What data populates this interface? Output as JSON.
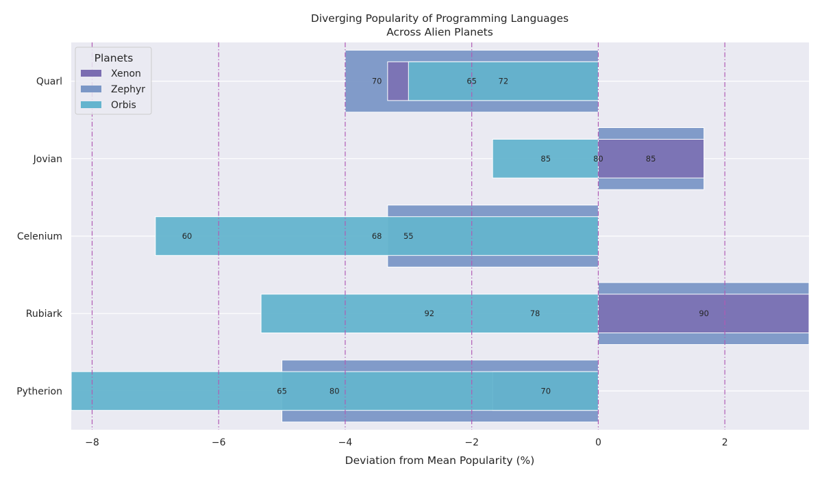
{
  "chart_data": {
    "type": "bar",
    "orientation": "horizontal",
    "title_lines": [
      "Diverging Popularity of Programming Languages",
      "Across Alien Planets"
    ],
    "xlabel": "Deviation from Mean Popularity (%)",
    "ylabel": "",
    "xlim": [
      -8.33,
      3.33
    ],
    "xticks": [
      -8,
      -6,
      -4,
      -2,
      0,
      2
    ],
    "xtick_labels": [
      "−8",
      "−6",
      "−4",
      "−2",
      "0",
      "2"
    ],
    "grid": true,
    "reference_lines": [
      -8,
      -6,
      -4,
      -2,
      0,
      2
    ],
    "reference_line_color": "#b05ab4",
    "categories": [
      "Quarl",
      "Jovian",
      "Celenium",
      "Rubiark",
      "Pytherion"
    ],
    "series": [
      {
        "name": "Xenon",
        "color": "#7b6db1",
        "deviations": [
          -3.33,
          1.67,
          0.0,
          6.67,
          -1.67
        ],
        "labels": [
          "65",
          "80",
          "55",
          "92",
          "70"
        ],
        "label_x": [
          -2.0,
          0.0,
          -3.0,
          -2.67,
          -0.83
        ]
      },
      {
        "name": "Zephyr",
        "color": "#7b97c6",
        "deviations": [
          -4.0,
          1.67,
          -3.33,
          3.33,
          -5.0
        ],
        "labels": [
          "70",
          "85",
          "68",
          "90",
          "65"
        ],
        "label_x": [
          -3.5,
          0.83,
          -3.5,
          1.67,
          -5.0
        ]
      },
      {
        "name": "Orbis",
        "color": "#64b4ce",
        "deviations": [
          -3.0,
          -1.67,
          -7.0,
          -5.33,
          -8.33
        ],
        "labels": [
          "72",
          "85",
          "60",
          "78",
          "80"
        ],
        "label_x": [
          -1.5,
          -0.83,
          -6.5,
          -1.0,
          -4.17
        ]
      }
    ],
    "legend": {
      "title": "Planets",
      "position": "top-left",
      "entries": [
        "Xenon",
        "Zephyr",
        "Orbis"
      ]
    }
  }
}
